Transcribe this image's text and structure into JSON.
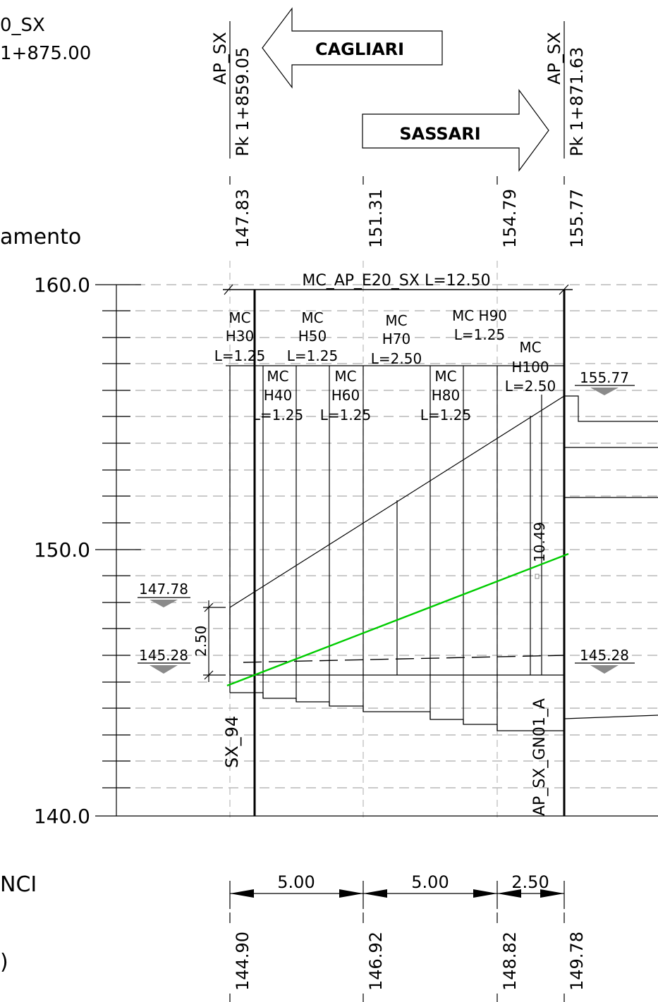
{
  "header": {
    "left_name": "0_SX",
    "left_pk": "1+875.00",
    "left_section_label": "amento",
    "left_lower_label_1": "NCI",
    "left_lower_label_2": ")"
  },
  "directions": {
    "left": "CAGLIARI",
    "right": "SASSARI"
  },
  "stations": [
    {
      "name": "AP_SX",
      "pk": "Pk 1+859.05"
    },
    {
      "name": "AP_SX",
      "pk": "Pk 1+871.63"
    }
  ],
  "top_elevations": [
    "147.83",
    "151.31",
    "154.79",
    "155.77"
  ],
  "bottom_elevations": [
    "144.90",
    "146.92",
    "148.82",
    "149.78"
  ],
  "axis": {
    "ticks": [
      "160.0",
      "150.0",
      "140.0"
    ],
    "ylim": [
      140,
      160
    ]
  },
  "beam_label": "MC_AP_E20_SX  L=12.50",
  "segments": {
    "s1": [
      "MC",
      "H30",
      "L=1.25"
    ],
    "s2": [
      "MC",
      "H40",
      "L=1.25"
    ],
    "s3": [
      "MC",
      "H50",
      "L=1.25"
    ],
    "s4": [
      "MC",
      "H60",
      "L=1.25"
    ],
    "s5": [
      "MC",
      "H70",
      "L=2.50"
    ],
    "s6": [
      "MC",
      "H80",
      "L=1.25"
    ],
    "s7": [
      "MC  H90",
      "L=1.25"
    ],
    "s8": [
      "MC",
      "H100",
      "L=2.50"
    ]
  },
  "levels": {
    "left_high": "147.78",
    "left_low": "145.28",
    "right_high": "155.77",
    "right_low": "145.28"
  },
  "dim_2_50": "2.50",
  "dim_10_49": "10.49",
  "labels": {
    "left_vertical": "SX_94",
    "right_vertical": "AP_SX_GN01_A"
  },
  "distances": [
    "5.00",
    "5.00",
    "2.50"
  ],
  "colors": {
    "profile_line": "#00cc00",
    "level_marker": "#8a8a8a"
  }
}
